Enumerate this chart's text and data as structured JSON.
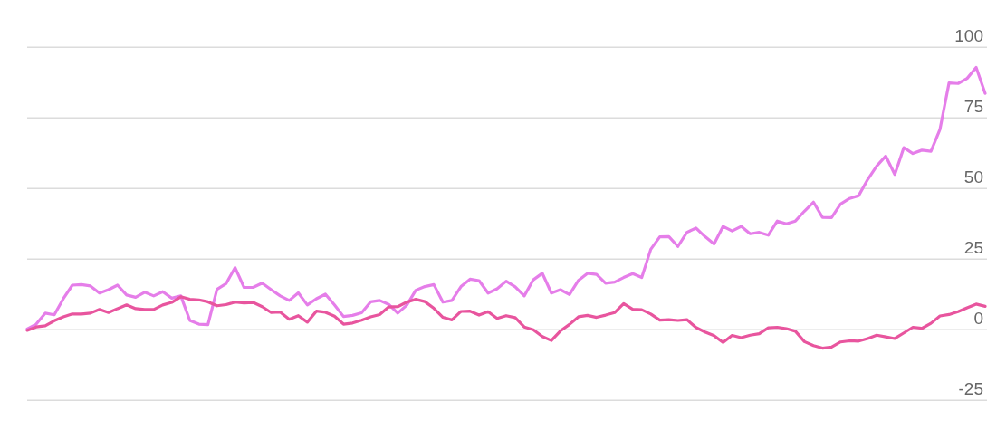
{
  "chart_data": {
    "type": "line",
    "categories": [
      null,
      null,
      null,
      null,
      null,
      null,
      null,
      null,
      null,
      null,
      null,
      null,
      null,
      null,
      null,
      null,
      null,
      null,
      null,
      null,
      null,
      null,
      null,
      null,
      null,
      null,
      null,
      null,
      null,
      null,
      null,
      null,
      null,
      null,
      null,
      null,
      null,
      null,
      null,
      null,
      null,
      null,
      null,
      null,
      null,
      null,
      null,
      null,
      null,
      null,
      null,
      null,
      null,
      null,
      null,
      null,
      null,
      null,
      null,
      null,
      null,
      null,
      null,
      null,
      null,
      null,
      null,
      null,
      null,
      null,
      null,
      null,
      null,
      null,
      null,
      null,
      null,
      null,
      null,
      null,
      null,
      null,
      null,
      null,
      null,
      null,
      null,
      null,
      null,
      null,
      null,
      null,
      null,
      null,
      null,
      null,
      null,
      null,
      null,
      null,
      null,
      null,
      null,
      null,
      null,
      null,
      null
    ],
    "series": [
      {
        "color": "#e57ee9",
        "values": [
          0.3,
          2,
          5.9,
          5.3,
          11,
          15.8,
          16,
          15.5,
          13,
          14.2,
          15.8,
          12.3,
          11.5,
          13.3,
          12,
          13.5,
          11.2,
          12,
          3.3,
          2,
          1.8,
          14.3,
          16.3,
          22,
          15,
          15,
          16.5,
          14.2,
          12,
          10.4,
          13.1,
          8.8,
          11,
          12.6,
          8.8,
          4.7,
          5.1,
          6,
          9.9,
          10.4,
          9,
          5.9,
          8.7,
          14,
          15.3,
          16,
          9.8,
          10.4,
          15.3,
          17.9,
          17.4,
          13,
          14.5,
          17.2,
          15.2,
          12,
          17.7,
          20,
          13,
          14.2,
          12.5,
          17.5,
          20,
          19.6,
          16.5,
          16.9,
          18.5,
          19.9,
          18.5,
          28.5,
          32.9,
          33,
          29.5,
          34.5,
          36,
          33,
          30.4,
          36.6,
          35,
          36.6,
          34,
          34.5,
          33.5,
          38.5,
          37.5,
          38.5,
          42,
          45.2,
          39.8,
          39.7,
          44.5,
          46.5,
          47.5,
          53.2,
          58,
          61.5,
          55,
          64.5,
          62.4,
          63.6,
          63.2,
          71,
          87.4,
          87.2,
          89,
          92.9,
          83.7
        ]
      },
      {
        "color": "#e8559e",
        "values": [
          -0.2,
          1,
          1.4,
          3.2,
          4.6,
          5.6,
          5.6,
          5.9,
          7.2,
          6.1,
          7.5,
          8.8,
          7.5,
          7.2,
          7.2,
          8.8,
          9.7,
          11.7,
          10.8,
          10.6,
          9.9,
          8.5,
          8.9,
          9.8,
          9.5,
          9.7,
          8.2,
          6.1,
          6.3,
          3.7,
          5,
          2.7,
          6.6,
          6.2,
          4.8,
          2,
          2.4,
          3.4,
          4.6,
          5.4,
          8.1,
          8.2,
          9.8,
          10.8,
          10,
          7.6,
          4.4,
          3.5,
          6.5,
          6.6,
          5.2,
          6.4,
          4,
          5,
          4.3,
          1,
          0,
          -2.4,
          -3.8,
          -0.4,
          1.9,
          4.6,
          5.1,
          4.4,
          5.2,
          6.1,
          9.3,
          7.3,
          7.1,
          5.6,
          3.4,
          3.6,
          3.3,
          3.6,
          0.8,
          -0.8,
          -2.1,
          -4.5,
          -2,
          -2.8,
          -1.9,
          -1.4,
          0.7,
          0.9,
          0.4,
          -0.5,
          -4.2,
          -5.6,
          -6.5,
          -6.1,
          -4.3,
          -3.9,
          -4,
          -3.1,
          -1.9,
          -2.5,
          -3.1,
          -1.1,
          0.9,
          0.5,
          2.3,
          4.9,
          5.4,
          6.4,
          7.8,
          9.1,
          8.3
        ]
      }
    ],
    "ylim": [
      -25,
      100
    ],
    "yticks": [
      -25,
      0,
      25,
      50,
      75,
      100
    ],
    "grid": true,
    "tick_labels": "y"
  }
}
